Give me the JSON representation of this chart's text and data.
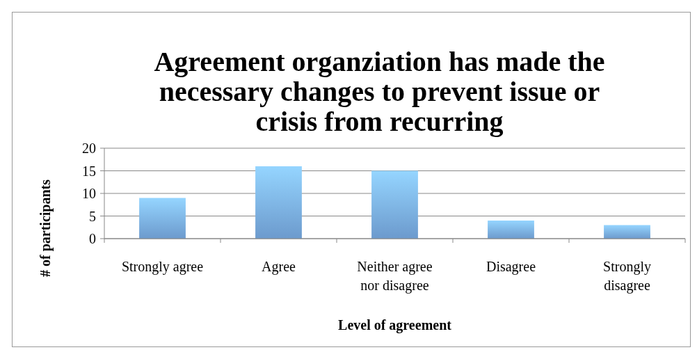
{
  "chart_data": {
    "type": "bar",
    "title": "Agreement organziation has made the necessary changes to prevent issue or crisis from recurring",
    "xlabel": "Level of agreement",
    "ylabel": "# of participants",
    "categories": [
      "Strongly agree",
      "Agree",
      "Neither agree nor disagree",
      "Disagree",
      "Strongly disagree"
    ],
    "values": [
      9,
      16,
      15,
      4,
      3
    ],
    "color": "#7db2ec",
    "ylim": [
      0,
      20
    ],
    "yticks": [
      0,
      5,
      10,
      15,
      20
    ],
    "grid": "y"
  }
}
